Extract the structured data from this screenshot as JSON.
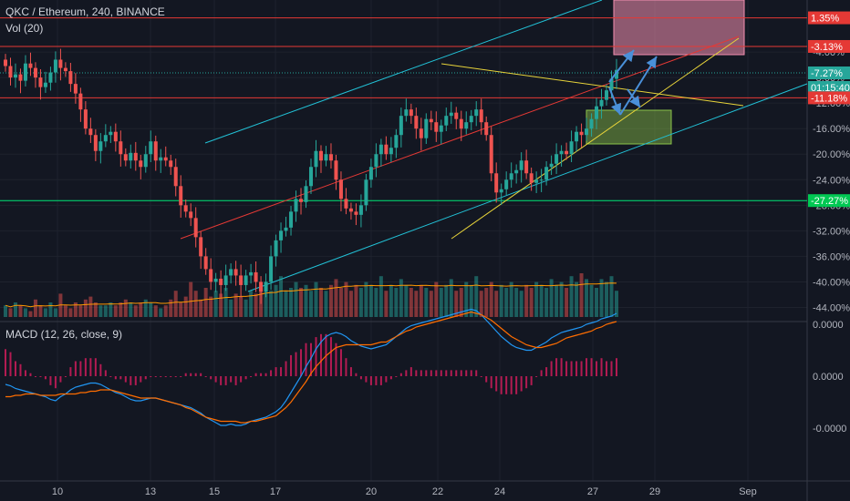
{
  "header": {
    "title": "QKC / Ethereum, 240, BINANCE",
    "vol_label": "Vol (20)",
    "macd_label": "MACD (12, 26, close, 9)"
  },
  "price_axis": {
    "ticks": [
      "-4.00%",
      "-8.00%",
      "-12.00%",
      "-16.00%",
      "-20.00%",
      "-24.00%",
      "-28.00%",
      "-32.00%",
      "-36.00%",
      "-40.00%",
      "-44.00%"
    ],
    "badges": [
      {
        "text": "1.35%",
        "color": "#e53935"
      },
      {
        "text": "-3.13%",
        "color": "#e53935"
      },
      {
        "text": "-7.27%",
        "color": "#26a69a"
      },
      {
        "text": "01:15:40",
        "color": "#26a69a"
      },
      {
        "text": "-11.18%",
        "color": "#e53935"
      },
      {
        "text": "-27.27%",
        "color": "#00c853"
      }
    ]
  },
  "macd_axis": {
    "ticks": [
      "0.0000",
      "0.0000",
      "-0.0000"
    ]
  },
  "time_axis": {
    "ticks": [
      "10",
      "13",
      "15",
      "17",
      "20",
      "22",
      "24",
      "27",
      "29",
      "Sep"
    ]
  },
  "chart_data": {
    "type": "candlestick",
    "ylim": [
      -45.5,
      3
    ],
    "closes": [
      -6.2,
      -8,
      -7.5,
      -8.5,
      -5.8,
      -6.5,
      -8,
      -9.5,
      -8.8,
      -7.2,
      -5.2,
      -6.5,
      -7,
      -9,
      -10.5,
      -13,
      -16,
      -17,
      -19.5,
      -18,
      -17,
      -16.5,
      -18,
      -20,
      -21,
      -19.8,
      -21,
      -22,
      -20,
      -18,
      -21,
      -20.5,
      -21,
      -22,
      -25,
      -28,
      -29,
      -30,
      -33,
      -36,
      -38,
      -40,
      -39.5,
      -40.5,
      -39,
      -38,
      -39,
      -40.5,
      -39,
      -38.5,
      -40,
      -41.5,
      -40,
      -36,
      -33.5,
      -32,
      -31.5,
      -29,
      -27,
      -27.5,
      -25,
      -22,
      -19.5,
      -21,
      -20,
      -21,
      -24,
      -27,
      -28.5,
      -29,
      -29.5,
      -28,
      -24,
      -22,
      -20,
      -18.5,
      -20,
      -19,
      -17,
      -14,
      -13,
      -14,
      -16,
      -17.5,
      -14.5,
      -15,
      -16.5,
      -15.5,
      -14,
      -13.5,
      -14.5,
      -16,
      -15,
      -14,
      -13,
      -15,
      -17,
      -23,
      -26,
      -25.5,
      -24,
      -23,
      -22.5,
      -21,
      -23,
      -24.5,
      -24,
      -24,
      -22,
      -21.5,
      -20,
      -19.5,
      -20,
      -18,
      -16.5,
      -17,
      -16,
      -14.5,
      -12.5,
      -11.5,
      -10,
      -8.2,
      -6.8
    ]
  },
  "volume_data": [
    4,
    3,
    5,
    4,
    3,
    2,
    6,
    4,
    3,
    5,
    3,
    8,
    4,
    3,
    5,
    4,
    6,
    7,
    5,
    4,
    4,
    5,
    4,
    5,
    6,
    5,
    4,
    5,
    6,
    5,
    4,
    3,
    4,
    6,
    9,
    5,
    7,
    12,
    9,
    6,
    10,
    7,
    9,
    8,
    10,
    6,
    8,
    7,
    6,
    9,
    8,
    10,
    12,
    9,
    11,
    14,
    9,
    10,
    12,
    10,
    11,
    9,
    12,
    10,
    9,
    11,
    13,
    10,
    12,
    9,
    11,
    10,
    12,
    11,
    10,
    14,
    9,
    11,
    10,
    13,
    11,
    10,
    9,
    11,
    10,
    9,
    12,
    10,
    11,
    13,
    9,
    10,
    12,
    11,
    14,
    9,
    10,
    12,
    9,
    11,
    10,
    12,
    10,
    9,
    11,
    10,
    12,
    11,
    10,
    13,
    11,
    12,
    10,
    14,
    12,
    15,
    13,
    11,
    10,
    13,
    12,
    14,
    9
  ],
  "macd_data": {
    "macd": [
      -0.6,
      -0.7,
      -0.9,
      -1,
      -1.1,
      -1.2,
      -1.3,
      -1.4,
      -1.5,
      -1.7,
      -1.8,
      -1.5,
      -1.3,
      -1,
      -0.8,
      -0.7,
      -0.6,
      -0.5,
      -0.5,
      -0.6,
      -0.8,
      -1,
      -1.2,
      -1.3,
      -1.5,
      -1.7,
      -1.8,
      -1.8,
      -1.7,
      -1.6,
      -1.6,
      -1.7,
      -1.8,
      -1.9,
      -2,
      -2.1,
      -2.2,
      -2.3,
      -2.5,
      -2.7,
      -3,
      -3.2,
      -3.4,
      -3.6,
      -3.6,
      -3.5,
      -3.6,
      -3.6,
      -3.5,
      -3.3,
      -3.2,
      -3.1,
      -3,
      -2.8,
      -2.6,
      -2.3,
      -1.8,
      -1.2,
      -0.6,
      0,
      0.7,
      1.3,
      2,
      2.5,
      2.9,
      3.1,
      3.2,
      3.1,
      2.9,
      2.6,
      2.4,
      2.2,
      2.1,
      2,
      2.1,
      2.2,
      2.3,
      2.6,
      2.9,
      3.2,
      3.5,
      3.7,
      3.8,
      3.9,
      4,
      4.1,
      4.2,
      4.3,
      4.4,
      4.5,
      4.6,
      4.7,
      4.8,
      4.9,
      4.8,
      4.5,
      4.1,
      3.7,
      3.3,
      2.9,
      2.6,
      2.3,
      2.1,
      2,
      1.9,
      1.9,
      2.1,
      2.3,
      2.5,
      2.8,
      3,
      3.2,
      3.3,
      3.4,
      3.5,
      3.6,
      3.8,
      3.9,
      4,
      4.2,
      4.3,
      4.4,
      4.6
    ],
    "signal": [
      -1.5,
      -1.5,
      -1.4,
      -1.4,
      -1.3,
      -1.3,
      -1.3,
      -1.4,
      -1.4,
      -1.4,
      -1.4,
      -1.3,
      -1.3,
      -1.3,
      -1.3,
      -1.2,
      -1.2,
      -1.1,
      -1.1,
      -1,
      -1,
      -1,
      -1.1,
      -1.2,
      -1.3,
      -1.4,
      -1.5,
      -1.6,
      -1.6,
      -1.6,
      -1.6,
      -1.7,
      -1.8,
      -1.9,
      -2,
      -2.1,
      -2.3,
      -2.4,
      -2.6,
      -2.8,
      -3,
      -3.1,
      -3.2,
      -3.3,
      -3.3,
      -3.3,
      -3.3,
      -3.4,
      -3.4,
      -3.3,
      -3.3,
      -3.2,
      -3.1,
      -3,
      -2.9,
      -2.6,
      -2.3,
      -1.9,
      -1.4,
      -0.9,
      -0.4,
      0.2,
      0.7,
      1.1,
      1.5,
      1.8,
      2.1,
      2.2,
      2.3,
      2.3,
      2.3,
      2.3,
      2.3,
      2.3,
      2.4,
      2.5,
      2.5,
      2.7,
      2.9,
      3.1,
      3.3,
      3.4,
      3.6,
      3.7,
      3.8,
      3.9,
      4,
      4.1,
      4.2,
      4.3,
      4.4,
      4.5,
      4.6,
      4.7,
      4.6,
      4.5,
      4.3,
      4.1,
      3.8,
      3.5,
      3.2,
      2.9,
      2.7,
      2.5,
      2.3,
      2.2,
      2.1,
      2.1,
      2.2,
      2.3,
      2.4,
      2.6,
      2.8,
      2.9,
      3,
      3.1,
      3.2,
      3.3,
      3.5,
      3.6,
      3.8,
      3.9,
      4
    ]
  }
}
